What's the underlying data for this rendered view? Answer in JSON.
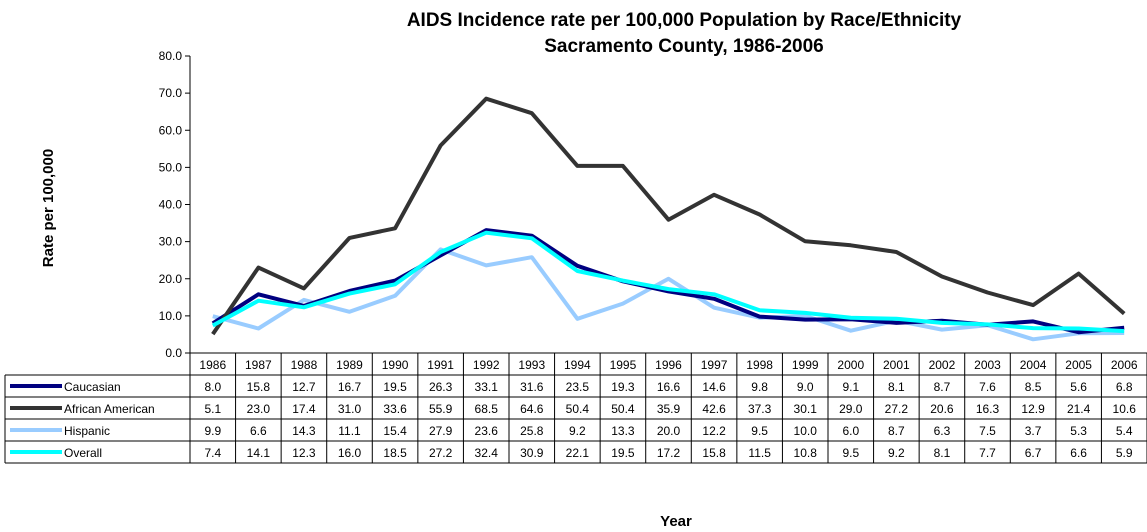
{
  "chart_data": {
    "type": "line",
    "title": "AIDS Incidence rate per 100,000 Population by Race/Ethnicity",
    "subtitle": "Sacramento County, 1986-2006",
    "xlabel": "Year",
    "ylabel": "Rate per 100,000",
    "ylim": [
      0,
      80
    ],
    "yticks": [
      "0.0",
      "10.0",
      "20.0",
      "30.0",
      "40.0",
      "50.0",
      "60.0",
      "70.0",
      "80.0"
    ],
    "grid": false,
    "legend": "data-table-left",
    "categories": [
      "1986",
      "1987",
      "1988",
      "1989",
      "1990",
      "1991",
      "1992",
      "1993",
      "1994",
      "1995",
      "1996",
      "1997",
      "1998",
      "1999",
      "2000",
      "2001",
      "2002",
      "2003",
      "2004",
      "2005",
      "2006"
    ],
    "series": [
      {
        "name": "Caucasian",
        "color": "#000080",
        "values": [
          8.0,
          15.8,
          12.7,
          16.7,
          19.5,
          26.3,
          33.1,
          31.6,
          23.5,
          19.3,
          16.6,
          14.6,
          9.8,
          9.0,
          9.1,
          8.1,
          8.7,
          7.6,
          8.5,
          5.6,
          6.8
        ],
        "labels": [
          "8.0",
          "15.8",
          "12.7",
          "16.7",
          "19.5",
          "26.3",
          "33.1",
          "31.6",
          "23.5",
          "19.3",
          "16.6",
          "14.6",
          "9.8",
          "9.0",
          "9.1",
          "8.1",
          "8.7",
          "7.6",
          "8.5",
          "5.6",
          "6.8"
        ]
      },
      {
        "name": "African American",
        "color": "#333333",
        "values": [
          5.1,
          23.0,
          17.4,
          31.0,
          33.6,
          55.9,
          68.5,
          64.6,
          50.4,
          50.4,
          35.9,
          42.6,
          37.3,
          30.1,
          29.0,
          27.2,
          20.6,
          16.3,
          12.9,
          21.4,
          10.6
        ],
        "labels": [
          "5.1",
          "23.0",
          "17.4",
          "31.0",
          "33.6",
          "55.9",
          "68.5",
          "64.6",
          "50.4",
          "50.4",
          "35.9",
          "42.6",
          "37.3",
          "30.1",
          "29.0",
          "27.2",
          "20.6",
          "16.3",
          "12.9",
          "21.4",
          "10.6"
        ]
      },
      {
        "name": "Hispanic",
        "color": "#99CCFF",
        "values": [
          9.9,
          6.6,
          14.3,
          11.1,
          15.4,
          27.9,
          23.6,
          25.8,
          9.2,
          13.3,
          20.0,
          12.2,
          9.5,
          10.0,
          6.0,
          8.7,
          6.3,
          7.5,
          3.7,
          5.3,
          5.4
        ],
        "labels": [
          "9.9",
          "6.6",
          "14.3",
          "11.1",
          "15.4",
          "27.9",
          "23.6",
          "25.8",
          "9.2",
          "13.3",
          "20.0",
          "12.2",
          "9.5",
          "10.0",
          "6.0",
          "8.7",
          "6.3",
          "7.5",
          "3.7",
          "5.3",
          "5.4"
        ]
      },
      {
        "name": "Overall",
        "color": "#00FFFF",
        "values": [
          7.4,
          14.1,
          12.3,
          16.0,
          18.5,
          27.2,
          32.4,
          30.9,
          22.1,
          19.5,
          17.2,
          15.8,
          11.5,
          10.8,
          9.5,
          9.2,
          8.1,
          7.7,
          6.7,
          6.6,
          5.9
        ],
        "labels": [
          "7.4",
          "14.1",
          "12.3",
          "16.0",
          "18.5",
          "27.2",
          "32.4",
          "30.9",
          "22.1",
          "19.5",
          "17.2",
          "15.8",
          "11.5",
          "10.8",
          "9.5",
          "9.2",
          "8.1",
          "7.7",
          "6.7",
          "6.6",
          "5.9"
        ]
      }
    ]
  }
}
